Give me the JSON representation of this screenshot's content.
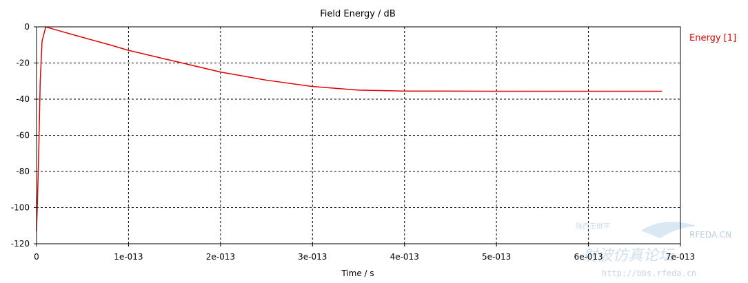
{
  "chart_data": {
    "type": "line",
    "title": "Field Energy / dB",
    "xlabel": "Time / s",
    "ylabel": "",
    "xlim": [
      0,
      7e-13
    ],
    "ylim": [
      -120,
      0
    ],
    "x_ticks": [
      "0",
      "1e-013",
      "2e-013",
      "3e-013",
      "4e-013",
      "5e-013",
      "6e-013",
      "7e-013"
    ],
    "y_ticks": [
      "0",
      "-20",
      "-40",
      "-60",
      "-80",
      "-100",
      "-120"
    ],
    "grid": true,
    "legend_position": "top-right",
    "series": [
      {
        "name": "Energy [1]",
        "color": "#e00000",
        "x": [
          0,
          2e-15,
          4e-15,
          6e-15,
          1e-14,
          2e-14,
          5e-14,
          8e-14,
          1e-13,
          1.5e-13,
          2e-13,
          2.5e-13,
          3e-13,
          3.5e-13,
          4e-13,
          5e-13,
          6e-13,
          6.8e-13
        ],
        "y": [
          -113,
          -78,
          -30,
          -8,
          0,
          -1.5,
          -5.8,
          -10,
          -13,
          -19,
          -25,
          -29.5,
          -33,
          -35,
          -35.5,
          -35.6,
          -35.6,
          -35.6
        ]
      }
    ]
  },
  "watermark": {
    "site": "RFEDA.CN",
    "cn_small": "陕西王继平",
    "cn_big": "射波仿真论坛",
    "url": "http://bbs.rfeda.cn"
  }
}
